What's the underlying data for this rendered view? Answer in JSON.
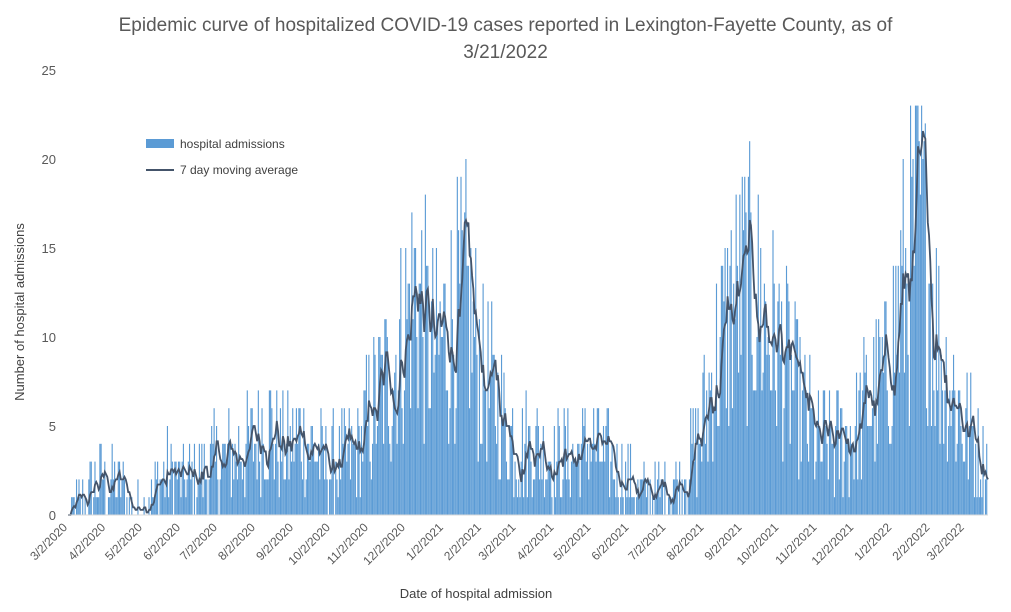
{
  "chart_data": {
    "type": "bar",
    "title_line1": "Epidemic curve of hospitalized COVID-19 cases reported in Lexington-Fayette County, as of",
    "title_line2": "3/21/2022",
    "xlabel": "Date of hospital admission",
    "ylabel": "Number of hospital admissions",
    "ylim": [
      0,
      25
    ],
    "yticks": [
      0,
      5,
      10,
      15,
      20,
      25
    ],
    "xlim": [
      "2020-03-02",
      "2022-03-21"
    ],
    "xticks": [
      "3/2/2020",
      "4/2/2020",
      "5/2/2020",
      "6/2/2020",
      "7/2/2020",
      "8/2/2020",
      "9/2/2020",
      "10/2/2020",
      "11/2/2020",
      "12/2/2020",
      "1/2/2021",
      "2/2/2021",
      "3/2/2021",
      "4/2/2021",
      "5/2/2021",
      "6/2/2021",
      "7/2/2021",
      "8/2/2021",
      "9/2/2021",
      "10/2/2021",
      "11/2/2021",
      "12/2/2021",
      "1/2/2022",
      "2/2/2022",
      "3/2/2022"
    ],
    "grid": false,
    "legend_position": "top-left",
    "bar_color": "#5b9bd5",
    "line_color": "#44546a",
    "series": [
      {
        "name": "hospital admissions",
        "kind": "bar"
      },
      {
        "name": "7 day moving average",
        "kind": "line"
      }
    ],
    "trend_keypoints": [
      [
        "2020-03-02",
        0
      ],
      [
        "2020-03-18",
        1
      ],
      [
        "2020-03-28",
        2
      ],
      [
        "2020-04-08",
        2
      ],
      [
        "2020-04-25",
        0.5
      ],
      [
        "2020-05-05",
        0.5
      ],
      [
        "2020-05-20",
        2.5
      ],
      [
        "2020-06-03",
        1.8
      ],
      [
        "2020-06-18",
        2.5
      ],
      [
        "2020-07-02",
        3
      ],
      [
        "2020-07-20",
        3.5
      ],
      [
        "2020-08-02",
        4
      ],
      [
        "2020-08-10",
        5.5
      ],
      [
        "2020-08-25",
        3.5
      ],
      [
        "2020-09-10",
        4.5
      ],
      [
        "2020-09-25",
        3
      ],
      [
        "2020-10-10",
        3
      ],
      [
        "2020-10-25",
        3.8
      ],
      [
        "2020-11-05",
        6
      ],
      [
        "2020-11-20",
        8
      ],
      [
        "2020-12-01",
        10.5
      ],
      [
        "2020-12-10",
        13
      ],
      [
        "2020-12-20",
        10
      ],
      [
        "2020-12-28",
        9
      ],
      [
        "2021-01-10",
        11.5
      ],
      [
        "2021-01-20",
        12
      ],
      [
        "2021-02-02",
        8
      ],
      [
        "2021-02-15",
        6
      ],
      [
        "2021-03-02",
        4
      ],
      [
        "2021-03-20",
        4
      ],
      [
        "2021-04-02",
        3
      ],
      [
        "2021-04-20",
        3.5
      ],
      [
        "2021-05-02",
        4
      ],
      [
        "2021-05-15",
        3
      ],
      [
        "2021-06-02",
        1.8
      ],
      [
        "2021-06-20",
        1.2
      ],
      [
        "2021-07-02",
        1.5
      ],
      [
        "2021-07-15",
        2
      ],
      [
        "2021-07-28",
        4
      ],
      [
        "2021-08-10",
        8
      ],
      [
        "2021-08-25",
        12
      ],
      [
        "2021-09-05",
        13
      ],
      [
        "2021-09-15",
        12
      ],
      [
        "2021-09-25",
        10
      ],
      [
        "2021-10-05",
        9
      ],
      [
        "2021-10-20",
        6
      ],
      [
        "2021-11-02",
        4
      ],
      [
        "2021-11-15",
        3.8
      ],
      [
        "2021-12-01",
        4.5
      ],
      [
        "2021-12-15",
        6.5
      ],
      [
        "2021-12-28",
        7.5
      ],
      [
        "2022-01-05",
        11
      ],
      [
        "2022-01-15",
        13.5
      ],
      [
        "2022-01-25",
        17
      ],
      [
        "2022-02-02",
        13
      ],
      [
        "2022-02-10",
        9
      ],
      [
        "2022-02-20",
        7
      ],
      [
        "2022-03-02",
        5
      ],
      [
        "2022-03-12",
        3.8
      ],
      [
        "2022-03-21",
        2.6
      ]
    ]
  }
}
